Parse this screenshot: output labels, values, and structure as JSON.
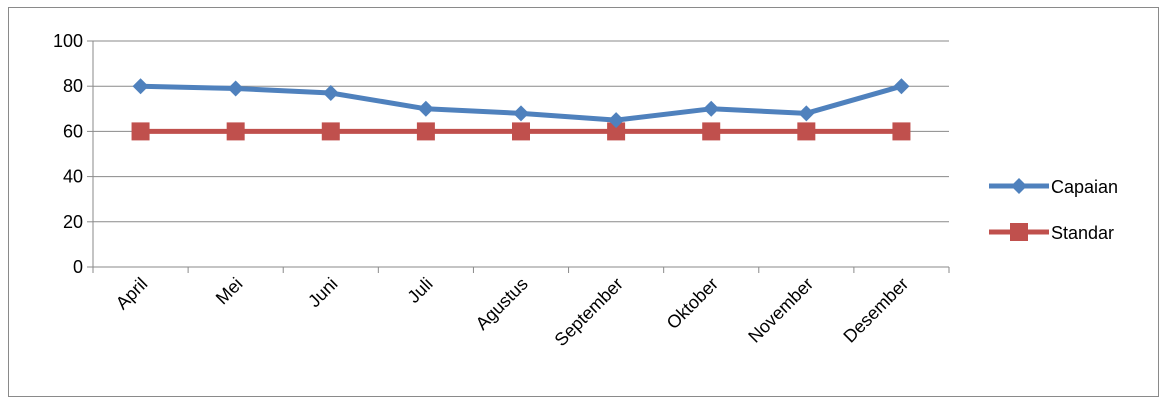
{
  "chart_data": {
    "type": "line",
    "categories": [
      "April",
      "Mei",
      "Juni",
      "Juli",
      "Agustus",
      "September",
      "Oktober",
      "November",
      "Desember"
    ],
    "series": [
      {
        "name": "Capaian",
        "values": [
          80,
          79,
          77,
          70,
          68,
          65,
          70,
          68,
          80
        ],
        "color": "#4f81bd",
        "marker": "diamond"
      },
      {
        "name": "Standar",
        "values": [
          60,
          60,
          60,
          60,
          60,
          60,
          60,
          60,
          60
        ],
        "color": "#c0504d",
        "marker": "square"
      }
    ],
    "ylim": [
      0,
      100
    ],
    "yticks": [
      0,
      20,
      40,
      60,
      80,
      100
    ],
    "grid": true,
    "legend": "right",
    "title": "",
    "xlabel": "",
    "ylabel": ""
  }
}
